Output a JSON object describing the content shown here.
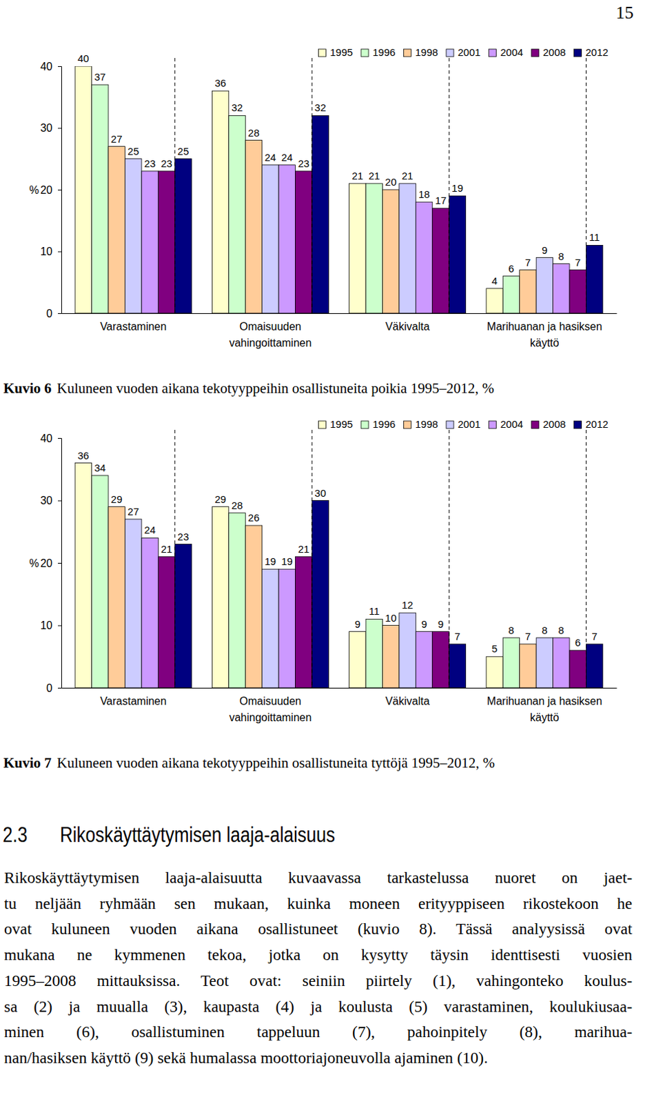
{
  "page_number": "15",
  "chart_data": [
    {
      "type": "bar",
      "title": "Kuvio 6 Kuluneen vuoden aikana tekotyyppeihin osallistuneita poikia 1995–2012, %",
      "y_label": "%",
      "categories": [
        "Varastaminen",
        "Omaisuuden\nvahingoittaminen",
        "Väkivalta",
        "Marihuanan ja hasiksen\nkäyttö"
      ],
      "series": [
        {
          "name": "1995",
          "color": "#ffffcc",
          "values": [
            40,
            36,
            21,
            4
          ]
        },
        {
          "name": "1996",
          "color": "#ccffcc",
          "values": [
            37,
            32,
            21,
            6
          ]
        },
        {
          "name": "1998",
          "color": "#ffcc99",
          "values": [
            27,
            28,
            20,
            7
          ]
        },
        {
          "name": "2001",
          "color": "#ccccff",
          "values": [
            25,
            24,
            21,
            9
          ]
        },
        {
          "name": "2004",
          "color": "#cc99ff",
          "values": [
            23,
            24,
            18,
            8
          ]
        },
        {
          "name": "2008",
          "color": "#800080",
          "values": [
            23,
            23,
            17,
            7
          ]
        },
        {
          "name": "2012",
          "color": "#000080",
          "values": [
            25,
            32,
            19,
            11
          ]
        }
      ],
      "ylim": [
        0,
        40
      ],
      "yticks": [
        0,
        10,
        20,
        30,
        40
      ],
      "data_labels": true,
      "legend": "top-right"
    },
    {
      "type": "bar",
      "title": "Kuvio 7 Kuluneen vuoden aikana tekotyyppeihin osallistuneita tyttöjä 1995–2012, %",
      "y_label": "%",
      "categories": [
        "Varastaminen",
        "Omaisuuden\nvahingoittaminen",
        "Väkivalta",
        "Marihuanan ja hasiksen\nkäyttö"
      ],
      "series": [
        {
          "name": "1995",
          "color": "#ffffcc",
          "values": [
            36,
            29,
            9,
            5
          ]
        },
        {
          "name": "1996",
          "color": "#ccffcc",
          "values": [
            34,
            28,
            11,
            8
          ]
        },
        {
          "name": "1998",
          "color": "#ffcc99",
          "values": [
            29,
            26,
            10,
            7
          ]
        },
        {
          "name": "2001",
          "color": "#ccccff",
          "values": [
            27,
            19,
            12,
            8
          ]
        },
        {
          "name": "2004",
          "color": "#cc99ff",
          "values": [
            24,
            19,
            9,
            8
          ]
        },
        {
          "name": "2008",
          "color": "#800080",
          "values": [
            21,
            21,
            9,
            6
          ]
        },
        {
          "name": "2012",
          "color": "#000080",
          "values": [
            23,
            30,
            7,
            7
          ]
        }
      ],
      "ylim": [
        0,
        40
      ],
      "yticks": [
        0,
        10,
        20,
        30,
        40
      ],
      "data_labels": true,
      "legend": "top-right"
    }
  ],
  "section": {
    "number": "2.3",
    "heading": "Rikoskäyttäytymisen laaja-alaisuus",
    "lines": [
      "Rikoskäyttäytymisen laaja-alaisuutta kuvaavassa tarkastelussa nuoret on jaet-",
      "tu neljään ryhmään sen mukaan, kuinka moneen erityyppiseen rikostekoon he",
      "ovat kuluneen vuoden aikana osallistuneet (kuvio 8). Tässä analyysissä ovat",
      "mukana ne kymmenen tekoa, jotka on kysytty täysin identtisesti vuosien",
      "1995–2008 mittauksissa. Teot ovat: seiniin piirtely (1), vahingonteko koulus-",
      "sa (2) ja muualla (3), kaupasta (4) ja koulusta (5) varastaminen, koulukiusaa-",
      "minen (6), osallistuminen tappeluun (7), pahoinpitely (8), marihua-",
      "nan/hasiksen käyttö (9) sekä humalassa moottoriajoneuvolla ajaminen (10)."
    ]
  }
}
